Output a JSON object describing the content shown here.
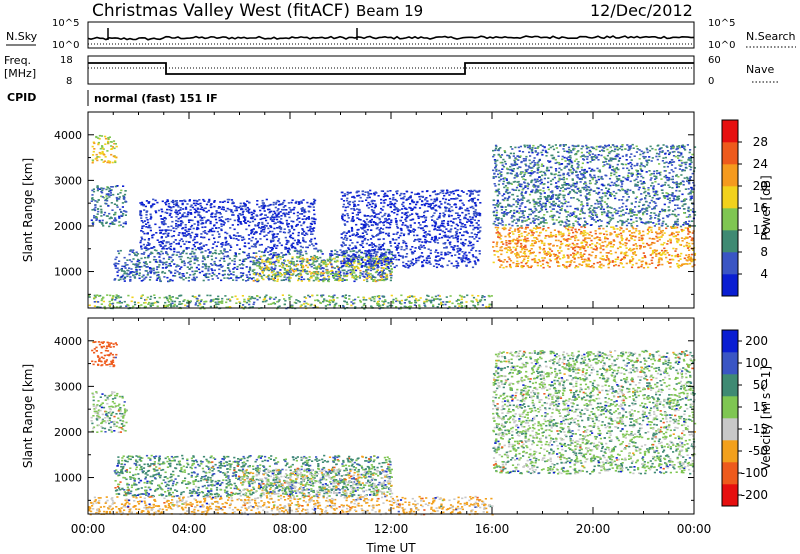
{
  "header": {
    "station": "Christmas Valley West (fitACF)",
    "beam": "Beam 19",
    "date": "12/Dec/2012"
  },
  "noise_panel": {
    "left_label": "N.Sky",
    "right_label": "N.Search",
    "left_ticks": [
      "10^5",
      "10^0"
    ],
    "right_ticks": [
      "10^5",
      "10^0"
    ]
  },
  "freq_panel": {
    "left_label_1": "Freq.",
    "left_label_2": "[MHz]",
    "right_label": "Nave",
    "left_ticks": [
      "18",
      "8"
    ],
    "right_ticks": [
      "60",
      "0"
    ]
  },
  "cpid": {
    "label": "CPID",
    "mode": "normal (fast) 151 IF"
  },
  "x_axis": {
    "label": "Time UT",
    "ticks": [
      "00:00",
      "04:00",
      "08:00",
      "12:00",
      "16:00",
      "20:00",
      "00:00"
    ]
  },
  "chart_data": [
    {
      "type": "heatmap",
      "title": "",
      "xlabel": "Time UT",
      "ylabel": "Slant Range [km]",
      "ylim": [
        200,
        4500
      ],
      "xlim": [
        0,
        24
      ],
      "y_ticks": [
        "1000",
        "2000",
        "3000",
        "4000"
      ],
      "colorbar": {
        "label": "Power [dB]",
        "ticks": [
          "4",
          "8",
          "12",
          "16",
          "20",
          "24",
          "28"
        ],
        "colors": [
          "#0a1ed2",
          "#3a55c4",
          "#3f8a73",
          "#7fc652",
          "#f2d21c",
          "#f59a1e",
          "#ee5a1c",
          "#e60f0f"
        ]
      },
      "regions": [
        {
          "t": [
            0.1,
            1.1
          ],
          "r": [
            3400,
            4000
          ],
          "value": 20
        },
        {
          "t": [
            0.1,
            1.5
          ],
          "r": [
            2000,
            2900
          ],
          "value": 10
        },
        {
          "t": [
            1.0,
            12.0
          ],
          "r": [
            800,
            1500
          ],
          "value": 9
        },
        {
          "t": [
            6.5,
            12.0
          ],
          "r": [
            800,
            1350
          ],
          "value": 18
        },
        {
          "t": [
            2.0,
            9.0
          ],
          "r": [
            1500,
            2600
          ],
          "value": 5
        },
        {
          "t": [
            10.0,
            15.5
          ],
          "r": [
            1100,
            2800
          ],
          "value": 5
        },
        {
          "t": [
            0.0,
            16.0
          ],
          "r": [
            200,
            500
          ],
          "value": 14
        },
        {
          "t": [
            16.0,
            24.0
          ],
          "r": [
            1100,
            2000
          ],
          "value": 24
        },
        {
          "t": [
            16.0,
            24.0
          ],
          "r": [
            2000,
            3800
          ],
          "value": 10
        }
      ]
    },
    {
      "type": "heatmap",
      "title": "",
      "xlabel": "Time UT",
      "ylabel": "Slant Range [km]",
      "ylim": [
        200,
        4500
      ],
      "xlim": [
        0,
        24
      ],
      "y_ticks": [
        "1000",
        "2000",
        "3000",
        "4000"
      ],
      "colorbar": {
        "label": "Velocity [m s^-1]",
        "ticks": [
          "200",
          "100",
          "50",
          "15",
          "-15",
          "-50",
          "-100",
          "-200"
        ],
        "colors": [
          "#0a1ed2",
          "#3a55c4",
          "#3f8a73",
          "#7fc652",
          "#c8c8c8",
          "#f2a01c",
          "#ee5a1c",
          "#e60f0f"
        ]
      },
      "regions": [
        {
          "t": [
            0.1,
            1.1
          ],
          "r": [
            3400,
            4000
          ],
          "value": -150
        },
        {
          "t": [
            0.1,
            1.5
          ],
          "r": [
            2000,
            2900
          ],
          "value": 0
        },
        {
          "t": [
            1.0,
            12.0
          ],
          "r": [
            600,
            1500
          ],
          "value": 30
        },
        {
          "t": [
            6.0,
            12.0
          ],
          "r": [
            600,
            1200
          ],
          "value": -30
        },
        {
          "t": [
            0.0,
            16.0
          ],
          "r": [
            200,
            600
          ],
          "value": -60
        },
        {
          "t": [
            16.0,
            24.0
          ],
          "r": [
            1100,
            2000
          ],
          "value": 0
        },
        {
          "t": [
            16.0,
            24.0
          ],
          "r": [
            2000,
            3800
          ],
          "value": 0
        }
      ]
    }
  ]
}
